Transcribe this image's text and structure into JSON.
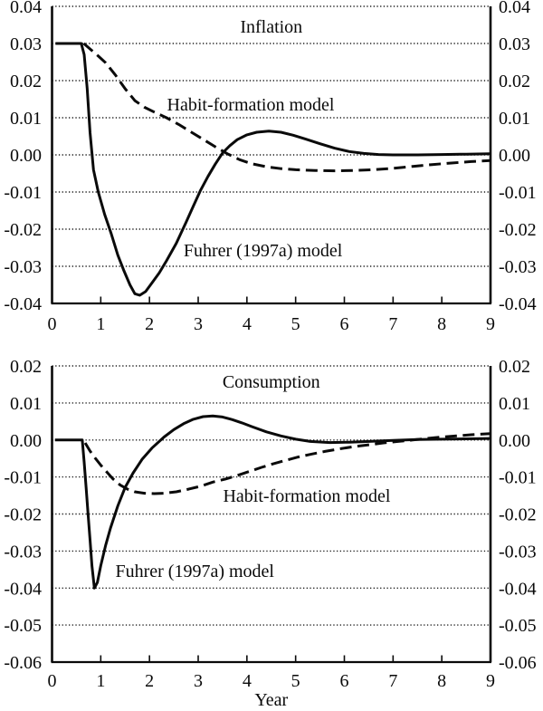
{
  "figure": {
    "background": "#ffffff",
    "ink": "#0a0a0a"
  },
  "chart_data": [
    {
      "id": "inflation",
      "type": "line",
      "title": "Inflation",
      "xlabel": "",
      "xlim": [
        0,
        9
      ],
      "ylim": [
        -0.04,
        0.04
      ],
      "grid": "dotted-horizontal",
      "legend_position": "in-plot-annotations",
      "dual_y_axis_labels": true,
      "x_tick_labels": [
        "0",
        "1",
        "2",
        "3",
        "4",
        "5",
        "6",
        "7",
        "8",
        "9"
      ],
      "y_tick_values": [
        0.04,
        0.03,
        0.02,
        0.01,
        0.0,
        -0.01,
        -0.02,
        -0.03,
        -0.04
      ],
      "y_tick_labels": [
        "0.04",
        "0.03",
        "0.02",
        "0.01",
        "0.00",
        "-0.01",
        "-0.02",
        "-0.03",
        "-0.04"
      ],
      "annotations": [
        {
          "text": "Habit-formation model",
          "x": 2.36,
          "y": 0.012,
          "anchor": "start"
        },
        {
          "text": "Fuhrer (1997a) model",
          "x": 2.7,
          "y": -0.0273,
          "anchor": "start"
        }
      ],
      "series": [
        {
          "name": "Habit-formation model",
          "style": "dashed",
          "points": [
            [
              0.65,
              0.03
            ],
            [
              0.8,
              0.0283
            ],
            [
              0.95,
              0.0266
            ],
            [
              1.1,
              0.0248
            ],
            [
              1.3,
              0.0215
            ],
            [
              1.5,
              0.0178
            ],
            [
              1.7,
              0.0146
            ],
            [
              1.9,
              0.0128
            ],
            [
              2.1,
              0.0115
            ],
            [
              2.35,
              0.01
            ],
            [
              2.6,
              0.0082
            ],
            [
              2.85,
              0.0062
            ],
            [
              3.1,
              0.0042
            ],
            [
              3.35,
              0.0022
            ],
            [
              3.6,
              0.0003
            ],
            [
              3.85,
              -0.0013
            ],
            [
              4.1,
              -0.0024
            ],
            [
              4.4,
              -0.0032
            ],
            [
              4.7,
              -0.0037
            ],
            [
              5.0,
              -0.004
            ],
            [
              5.4,
              -0.0042
            ],
            [
              5.8,
              -0.0043
            ],
            [
              6.2,
              -0.0042
            ],
            [
              6.6,
              -0.004
            ],
            [
              7.0,
              -0.0036
            ],
            [
              7.4,
              -0.0031
            ],
            [
              7.8,
              -0.0026
            ],
            [
              8.2,
              -0.0022
            ],
            [
              8.6,
              -0.0018
            ],
            [
              9.0,
              -0.0015
            ]
          ]
        },
        {
          "name": "Fuhrer (1997a) model",
          "style": "solid",
          "points": [
            [
              0.07,
              0.03
            ],
            [
              0.6,
              0.03
            ],
            [
              0.66,
              0.027
            ],
            [
              0.72,
              0.018
            ],
            [
              0.78,
              0.006
            ],
            [
              0.85,
              -0.004
            ],
            [
              0.95,
              -0.01
            ],
            [
              1.08,
              -0.016
            ],
            [
              1.21,
              -0.021
            ],
            [
              1.35,
              -0.027
            ],
            [
              1.47,
              -0.031
            ],
            [
              1.6,
              -0.035
            ],
            [
              1.7,
              -0.0374
            ],
            [
              1.8,
              -0.0378
            ],
            [
              1.92,
              -0.0368
            ],
            [
              2.05,
              -0.0345
            ],
            [
              2.2,
              -0.0318
            ],
            [
              2.35,
              -0.0285
            ],
            [
              2.55,
              -0.0238
            ],
            [
              2.75,
              -0.0182
            ],
            [
              2.9,
              -0.0138
            ],
            [
              3.05,
              -0.0095
            ],
            [
              3.2,
              -0.0058
            ],
            [
              3.35,
              -0.0025
            ],
            [
              3.5,
              0.0005
            ],
            [
              3.65,
              0.0025
            ],
            [
              3.8,
              0.0041
            ],
            [
              4.0,
              0.0054
            ],
            [
              4.2,
              0.0061
            ],
            [
              4.45,
              0.0064
            ],
            [
              4.7,
              0.0061
            ],
            [
              4.95,
              0.0053
            ],
            [
              5.2,
              0.0043
            ],
            [
              5.5,
              0.003
            ],
            [
              5.8,
              0.0018
            ],
            [
              6.1,
              0.0009
            ],
            [
              6.4,
              0.0004
            ],
            [
              6.7,
              0.0001
            ],
            [
              7.0,
              0.0
            ],
            [
              7.5,
              0.0
            ],
            [
              8.0,
              0.0001
            ],
            [
              8.5,
              0.0002
            ],
            [
              9.0,
              0.0003
            ]
          ]
        }
      ]
    },
    {
      "id": "consumption",
      "type": "line",
      "title": "Consumption",
      "xlabel": "Year",
      "xlim": [
        0,
        9
      ],
      "ylim": [
        -0.06,
        0.02
      ],
      "grid": "dotted-horizontal",
      "legend_position": "in-plot-annotations",
      "dual_y_axis_labels": true,
      "x_tick_labels": [
        "0",
        "1",
        "2",
        "3",
        "4",
        "5",
        "6",
        "7",
        "8",
        "9"
      ],
      "y_tick_values": [
        0.02,
        0.01,
        0.0,
        -0.01,
        -0.02,
        -0.03,
        -0.04,
        -0.05,
        -0.06
      ],
      "y_tick_labels": [
        "0.02",
        "0.01",
        "0.00",
        "-0.01",
        "-0.02",
        "-0.03",
        "-0.04",
        "-0.05",
        "-0.06"
      ],
      "annotations": [
        {
          "text": "Habit-formation model",
          "x": 3.51,
          "y": -0.0167,
          "anchor": "start"
        },
        {
          "text": "Fuhrer (1997a) model",
          "x": 1.3,
          "y": -0.037,
          "anchor": "start"
        }
      ],
      "series": [
        {
          "name": "Habit-formation model",
          "style": "dashed",
          "points": [
            [
              0.68,
              -0.0008
            ],
            [
              0.78,
              -0.003
            ],
            [
              0.88,
              -0.0048
            ],
            [
              1.0,
              -0.0068
            ],
            [
              1.12,
              -0.0086
            ],
            [
              1.25,
              -0.0105
            ],
            [
              1.4,
              -0.0122
            ],
            [
              1.55,
              -0.0133
            ],
            [
              1.7,
              -0.014
            ],
            [
              1.9,
              -0.0144
            ],
            [
              2.1,
              -0.0145
            ],
            [
              2.3,
              -0.0144
            ],
            [
              2.55,
              -0.014
            ],
            [
              2.8,
              -0.0133
            ],
            [
              3.05,
              -0.0125
            ],
            [
              3.3,
              -0.0114
            ],
            [
              3.55,
              -0.0106
            ],
            [
              3.8,
              -0.0096
            ],
            [
              4.05,
              -0.0085
            ],
            [
              4.3,
              -0.0074
            ],
            [
              4.55,
              -0.0064
            ],
            [
              4.8,
              -0.0055
            ],
            [
              5.05,
              -0.0046
            ],
            [
              5.3,
              -0.0039
            ],
            [
              5.6,
              -0.0031
            ],
            [
              5.9,
              -0.0024
            ],
            [
              6.2,
              -0.0018
            ],
            [
              6.5,
              -0.0013
            ],
            [
              6.8,
              -0.0008
            ],
            [
              7.1,
              -0.0004
            ],
            [
              7.4,
              0.0
            ],
            [
              7.7,
              0.0004
            ],
            [
              8.0,
              0.0008
            ],
            [
              8.3,
              0.0011
            ],
            [
              8.6,
              0.0014
            ],
            [
              9.0,
              0.0017
            ]
          ]
        },
        {
          "name": "Fuhrer (1997a) model",
          "style": "solid",
          "points": [
            [
              0.06,
              0.0
            ],
            [
              0.62,
              0.0
            ],
            [
              0.66,
              -0.006
            ],
            [
              0.7,
              -0.013
            ],
            [
              0.74,
              -0.02
            ],
            [
              0.78,
              -0.027
            ],
            [
              0.82,
              -0.034
            ],
            [
              0.87,
              -0.04
            ],
            [
              0.93,
              -0.0385
            ],
            [
              1.0,
              -0.034
            ],
            [
              1.1,
              -0.0285
            ],
            [
              1.2,
              -0.0238
            ],
            [
              1.35,
              -0.0178
            ],
            [
              1.5,
              -0.0128
            ],
            [
              1.66,
              -0.009
            ],
            [
              1.85,
              -0.0052
            ],
            [
              2.05,
              -0.0022
            ],
            [
              2.3,
              0.0008
            ],
            [
              2.5,
              0.0028
            ],
            [
              2.7,
              0.0044
            ],
            [
              2.9,
              0.0056
            ],
            [
              3.1,
              0.0063
            ],
            [
              3.3,
              0.0065
            ],
            [
              3.5,
              0.0062
            ],
            [
              3.7,
              0.0055
            ],
            [
              3.9,
              0.0046
            ],
            [
              4.1,
              0.0036
            ],
            [
              4.4,
              0.0022
            ],
            [
              4.7,
              0.0011
            ],
            [
              5.0,
              0.0002
            ],
            [
              5.3,
              -0.0004
            ],
            [
              5.7,
              -0.0007
            ],
            [
              6.1,
              -0.0006
            ],
            [
              6.5,
              -0.0004
            ],
            [
              7.0,
              -0.0001
            ],
            [
              7.5,
              0.0001
            ],
            [
              8.0,
              0.0002
            ],
            [
              8.5,
              0.0003
            ],
            [
              9.0,
              0.0004
            ]
          ]
        }
      ]
    }
  ]
}
